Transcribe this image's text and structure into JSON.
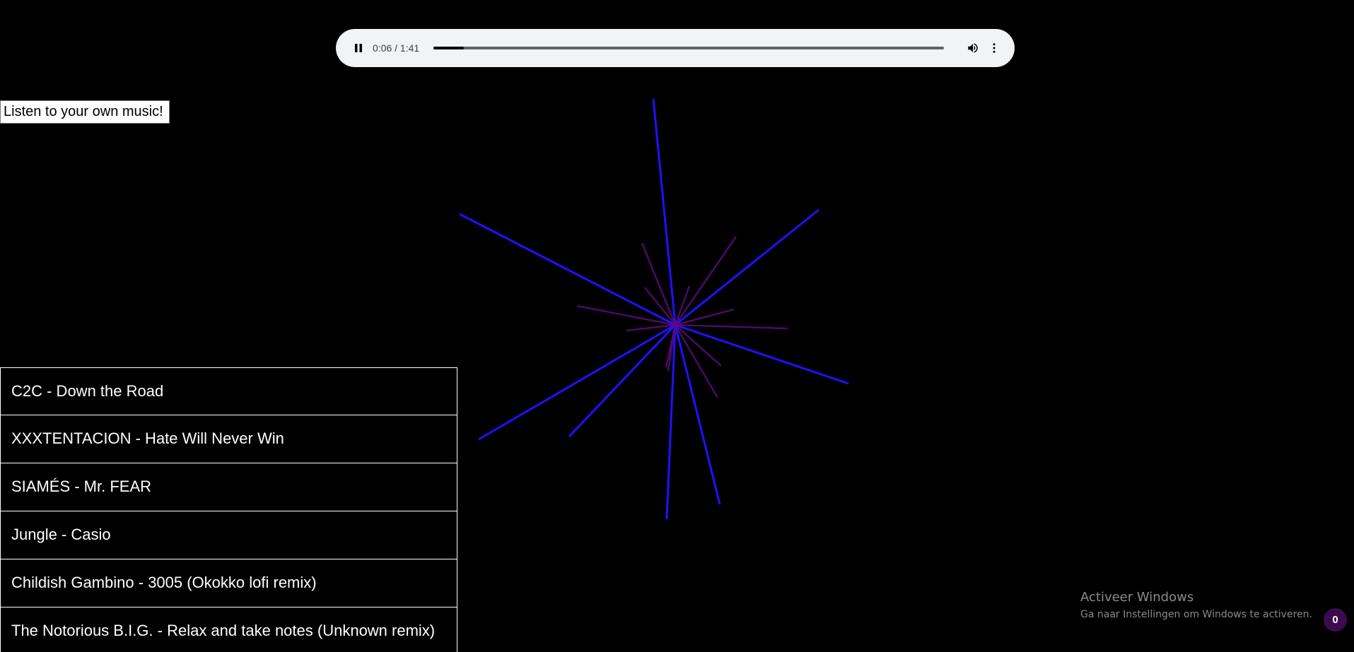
{
  "player": {
    "state": "playing",
    "current_time": "0:06",
    "duration": "1:41",
    "time_label": "0:06 / 1:41",
    "progress": 0.059,
    "pause_icon": "pause-icon",
    "volume_icon": "volume-icon",
    "more_icon": "more-vert-icon"
  },
  "upload": {
    "label": "Listen to your own music!"
  },
  "playlist": {
    "items": [
      {
        "label": "C2C - Down the Road"
      },
      {
        "label": "XXXTENTACION - Hate Will Never Win"
      },
      {
        "label": "SIAMÉS - Mr. FEAR"
      },
      {
        "label": "Jungle - Casio"
      },
      {
        "label": "Childish Gambino - 3005 (Okokko lofi remix)"
      },
      {
        "label": "The Notorious B.I.G. - Relax and take notes (Unknown remix)"
      }
    ]
  },
  "visualizer": {
    "colors": {
      "loud": "#2010ff",
      "quiet": "#5a0a7a"
    }
  },
  "watermark": {
    "title": "Activeer Windows",
    "subtitle": "Ga naar Instellingen om Windows te activeren."
  },
  "badge": {
    "count": "0"
  }
}
